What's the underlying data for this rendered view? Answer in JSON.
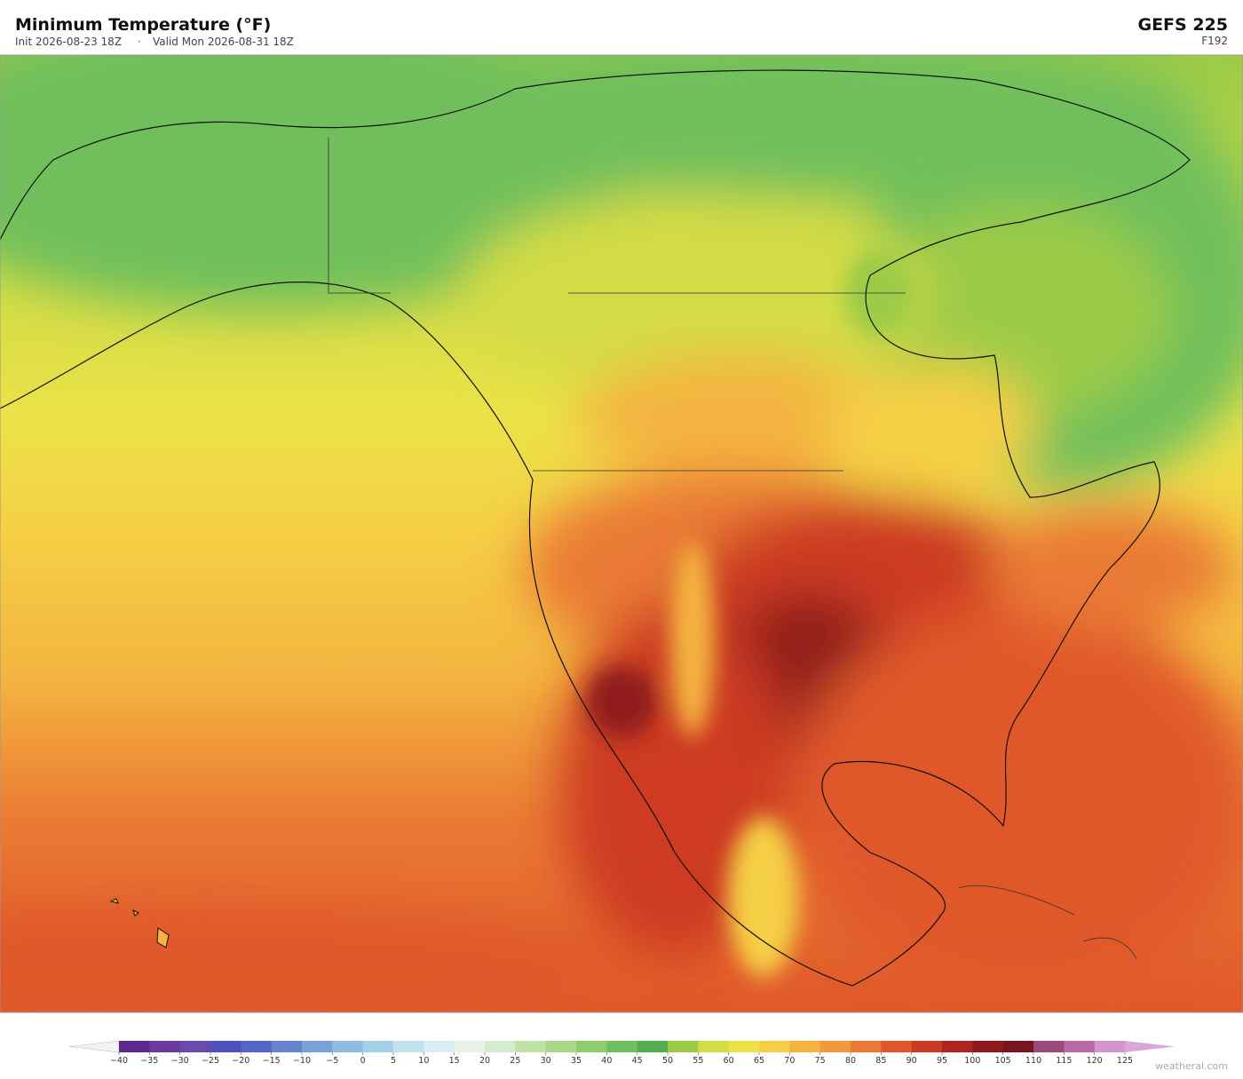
{
  "header": {
    "title": "Minimum Temperature  (°F)",
    "init": "Init 2026-08-23 18Z",
    "separator": "·",
    "valid": "Valid Mon 2026-08-31 18Z",
    "model": "GEFS  225",
    "forecast_hour": "F192"
  },
  "colorbar": {
    "ticks": [
      {
        "value": -40,
        "label": "−40"
      },
      {
        "value": -35,
        "label": "−35"
      },
      {
        "value": -30,
        "label": "−30"
      },
      {
        "value": -25,
        "label": "−25"
      },
      {
        "value": -20,
        "label": "−20"
      },
      {
        "value": -15,
        "label": "−15"
      },
      {
        "value": -10,
        "label": "−10"
      },
      {
        "value": -5,
        "label": "−5"
      },
      0,
      5,
      10,
      15,
      20,
      25,
      30,
      35,
      40,
      45,
      50,
      55,
      60,
      65,
      70,
      75,
      80,
      85,
      90,
      95,
      100,
      105,
      110,
      115,
      120,
      125
    ],
    "colors": [
      "#5b2a8c",
      "#6a3a9e",
      "#6b4aae",
      "#5050c0",
      "#5565c8",
      "#6584cc",
      "#7aa2d8",
      "#8fbce0",
      "#a6d0e8",
      "#c2e2ef",
      "#dcedf3",
      "#e8f3e6",
      "#d6ecd0",
      "#bfe2a8",
      "#a8d888",
      "#8fcc6e",
      "#6fbf5c",
      "#52af4e",
      "#9ccb47",
      "#d4dc45",
      "#ece248",
      "#f5cf45",
      "#f4b440",
      "#f09a3c",
      "#ea7a34",
      "#e0582a",
      "#cc3a24",
      "#b02420",
      "#8e1a1c",
      "#7a1420",
      "#9c4a7a",
      "#b86aa4",
      "#d296cc"
    ],
    "under_color": "#f2f2f2",
    "over_color": "#d9a8d8"
  },
  "footer": {
    "watermark": "weatherai.com"
  }
}
